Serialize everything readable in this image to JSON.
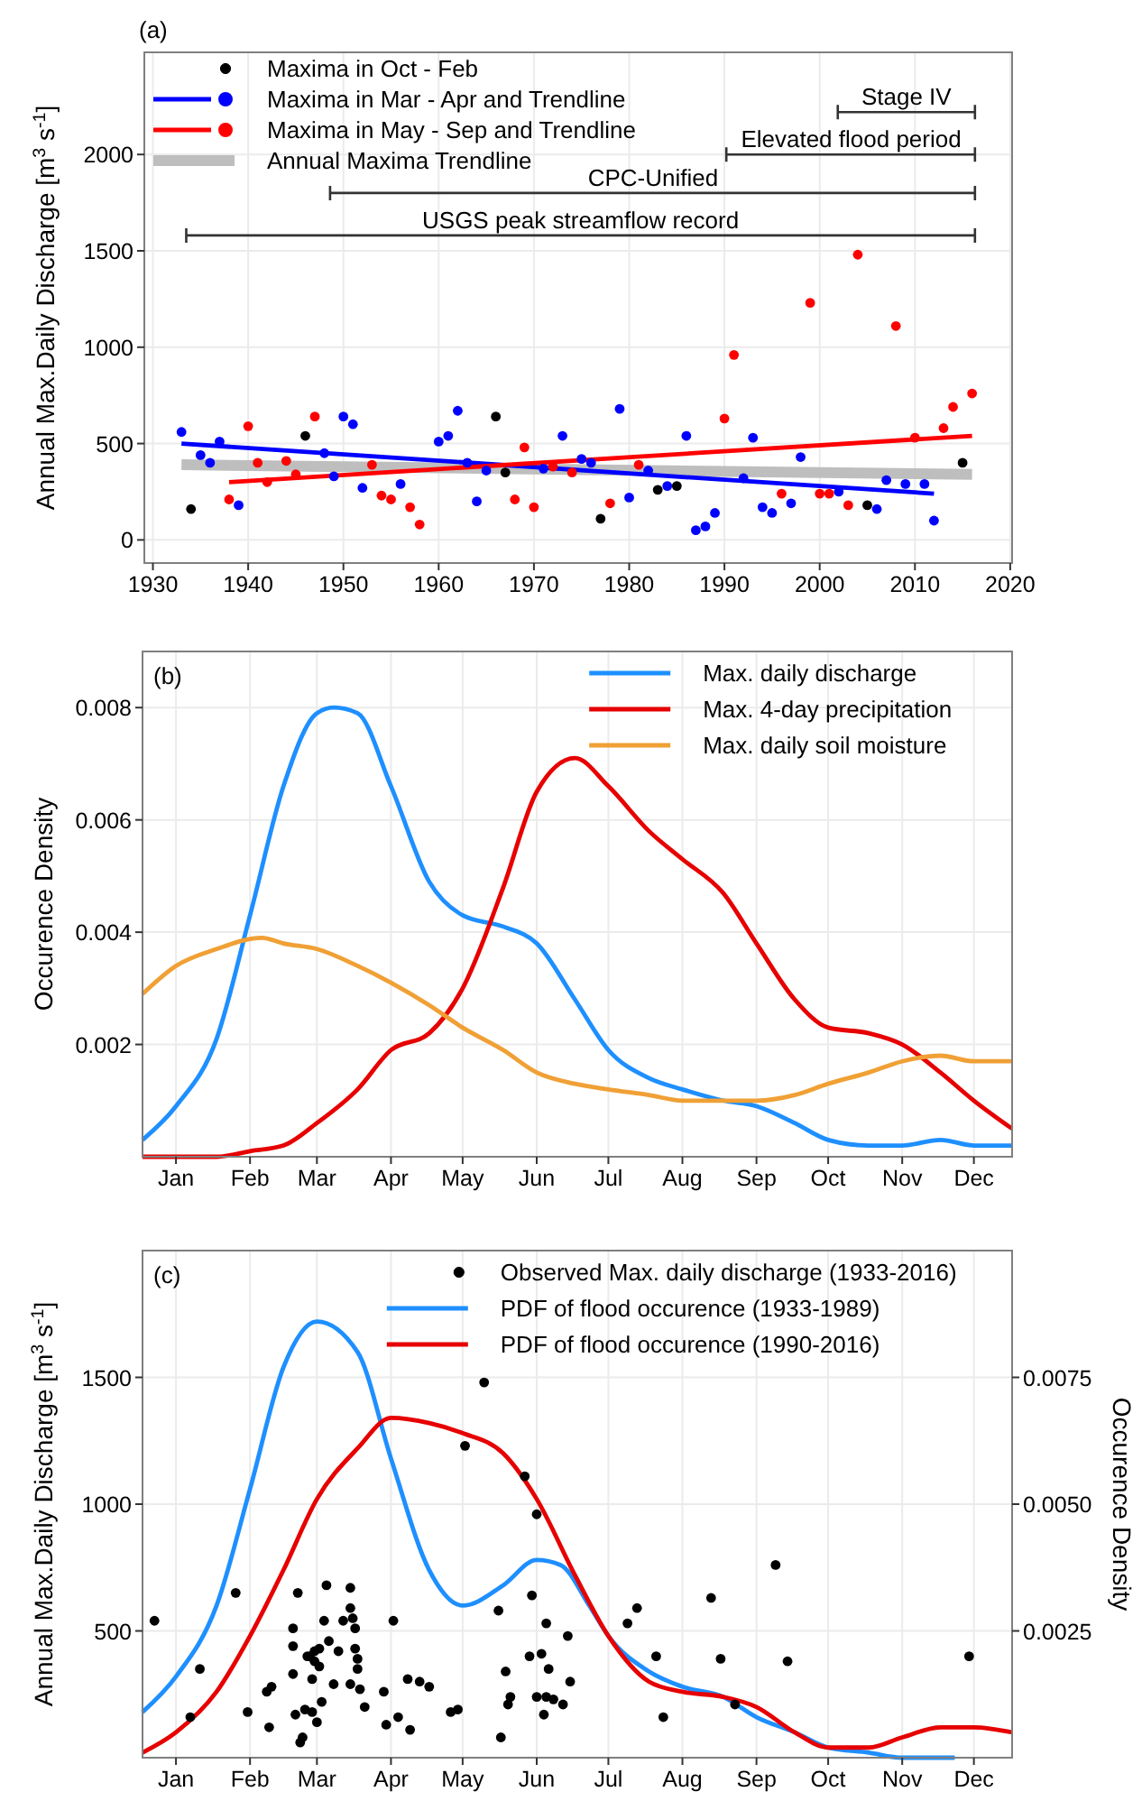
{
  "chart_data": [
    {
      "type": "scatter",
      "title": "(a)",
      "ylabel": "Annual Max.Daily Discharge [m$^{3}$ s$^{-1}$]",
      "xlim": [
        1929.1,
        2020.2
      ],
      "ylim": [
        -120,
        2530
      ],
      "xticks": [
        1930,
        1940,
        1950,
        1960,
        1970,
        1980,
        1990,
        2000,
        2010,
        2020
      ],
      "yticks": [
        0,
        500,
        1000,
        1500,
        2000
      ],
      "grid": true,
      "legend": "top left",
      "series": [
        {
          "name": "Maxima in Oct - Feb",
          "marker": "circle",
          "color": "#000000",
          "x": [
            1934,
            1946,
            1966,
            1967,
            1977,
            1983,
            1985,
            2005,
            2015
          ],
          "values": [
            160,
            540,
            640,
            350,
            110,
            260,
            280,
            180,
            400
          ]
        },
        {
          "name": "Maxima in Mar - Apr and Trendline",
          "marker": "circle",
          "color": "#0000ff",
          "x": [
            1933,
            1935,
            1936,
            1937,
            1939,
            1948,
            1949,
            1950,
            1951,
            1952,
            1956,
            1960,
            1961,
            1962,
            1963,
            1964,
            1965,
            1971,
            1973,
            1975,
            1976,
            1979,
            1980,
            1982,
            1984,
            1986,
            1987,
            1988,
            1989,
            1992,
            1993,
            1994,
            1995,
            1997,
            1998,
            2002,
            2006,
            2007,
            2009,
            2011,
            2012
          ],
          "values": [
            560,
            440,
            400,
            510,
            180,
            450,
            330,
            640,
            600,
            270,
            290,
            510,
            540,
            670,
            400,
            200,
            360,
            370,
            540,
            420,
            400,
            680,
            220,
            360,
            280,
            540,
            50,
            70,
            140,
            320,
            530,
            170,
            140,
            190,
            430,
            250,
            160,
            310,
            290,
            290,
            100
          ]
        },
        {
          "name": "Maxima in May - Sep and Trendline",
          "marker": "circle",
          "color": "#ff0000",
          "x": [
            1938,
            1940,
            1941,
            1942,
            1944,
            1945,
            1947,
            1953,
            1954,
            1955,
            1957,
            1958,
            1968,
            1969,
            1970,
            1972,
            1974,
            1978,
            1981,
            1990,
            1991,
            1996,
            1999,
            2000,
            2001,
            2003,
            2004,
            2008,
            2010,
            2013,
            2014,
            2016
          ],
          "values": [
            210,
            590,
            400,
            300,
            410,
            340,
            640,
            390,
            230,
            210,
            170,
            80,
            210,
            480,
            170,
            380,
            350,
            190,
            390,
            630,
            960,
            240,
            1230,
            240,
            240,
            180,
            1480,
            1110,
            530,
            580,
            690,
            760
          ]
        },
        {
          "name": "Annual Maxima Trendline",
          "type": "line",
          "color": "#bebebe",
          "x": [
            1933,
            2016
          ],
          "values": [
            390,
            340
          ]
        },
        {
          "type": "line",
          "color": "#0000ff",
          "x": [
            1933,
            2012
          ],
          "values": [
            500,
            240
          ]
        },
        {
          "type": "line",
          "color": "#ff0000",
          "x": [
            1938,
            2016
          ],
          "values": [
            300,
            540
          ]
        },
        {
          "type": "line",
          "color": "#333333",
          "x": [
            2001.9,
            2016.3
          ],
          "values": [
            2220,
            2220
          ]
        },
        {
          "type": "line",
          "color": "#333333",
          "x": [
            1990.2,
            2016.3
          ],
          "values": [
            2000,
            2000
          ]
        },
        {
          "type": "line",
          "color": "#333333",
          "x": [
            1948.6,
            2016.3
          ],
          "values": [
            1800,
            1800
          ]
        },
        {
          "type": "line",
          "color": "#333333",
          "x": [
            1933.5,
            2016.3
          ],
          "values": [
            1580,
            1580
          ]
        }
      ],
      "annotations": [
        {
          "text": "Stage IV",
          "x": 2009.1,
          "y": 2220
        },
        {
          "text": "Elevated flood period",
          "x": 2003.3,
          "y": 2000
        },
        {
          "text": "CPC-Unified",
          "x": 1982.5,
          "y": 1800
        },
        {
          "text": "USGS peak streamflow record",
          "x": 1974.9,
          "y": 1580
        }
      ]
    },
    {
      "type": "line",
      "title": "(b)",
      "ylabel": "Occurence Density",
      "xlim": [
        "--01-01",
        "--12-31"
      ],
      "ylim": [
        0,
        0.009
      ],
      "xticks": [
        {
          "value": "--01-15",
          "label": "Jan"
        },
        {
          "value": "--02-15",
          "label": "Feb"
        },
        {
          "value": "--03-15",
          "label": "Mar"
        },
        {
          "value": "--04-15",
          "label": "Apr"
        },
        {
          "value": "--05-15",
          "label": "May"
        },
        {
          "value": "--06-15",
          "label": "Jun"
        },
        {
          "value": "--07-15",
          "label": "Jul"
        },
        {
          "value": "--08-15",
          "label": "Aug"
        },
        {
          "value": "--09-15",
          "label": "Sep"
        },
        {
          "value": "--10-15",
          "label": "Oct"
        },
        {
          "value": "--11-15",
          "label": "Nov"
        },
        {
          "value": "--12-15",
          "label": "Dec"
        }
      ],
      "yticks": [
        0.002,
        0.004,
        0.006,
        0.008
      ],
      "grid": true,
      "legend": "top right",
      "series": [
        {
          "name": "Max. daily discharge",
          "color": "#1e8fff",
          "x": [
            "--01-01",
            "--01-15",
            "--02-01",
            "--02-15",
            "--03-01",
            "--03-15",
            "--03-22",
            "--04-01",
            "--04-15",
            "--05-01",
            "--05-15",
            "--06-01",
            "--06-15",
            "--07-01",
            "--07-15",
            "--08-01",
            "--08-15",
            "--09-01",
            "--09-15",
            "--10-01",
            "--10-15",
            "--11-01",
            "--11-15",
            "--12-01",
            "--12-15",
            "--12-31"
          ],
          "values": [
            0.0003,
            0.0009,
            0.0021,
            0.0043,
            0.0066,
            0.0079,
            0.008,
            0.0079,
            0.0066,
            0.0049,
            0.0043,
            0.0041,
            0.0038,
            0.0028,
            0.0019,
            0.0014,
            0.0012,
            0.001,
            0.0009,
            0.0006,
            0.0003,
            0.0002,
            0.0002,
            0.0003,
            0.0002,
            0.0002
          ]
        },
        {
          "name": "Max. 4-day precipitation",
          "color": "#e60000",
          "x": [
            "--01-01",
            "--02-01",
            "--02-15",
            "--03-01",
            "--03-15",
            "--04-01",
            "--04-15",
            "--05-01",
            "--05-15",
            "--06-01",
            "--06-15",
            "--07-01",
            "--07-15",
            "--08-01",
            "--08-15",
            "--09-01",
            "--09-15",
            "--10-01",
            "--10-15",
            "--11-01",
            "--11-15",
            "--12-01",
            "--12-15",
            "--12-31"
          ],
          "values": [
            0,
            0,
            0.0001,
            0.0002,
            0.0006,
            0.0012,
            0.0019,
            0.0022,
            0.003,
            0.0048,
            0.0065,
            0.0071,
            0.0066,
            0.0058,
            0.0053,
            0.0047,
            0.0038,
            0.0028,
            0.0023,
            0.0022,
            0.002,
            0.0015,
            0.001,
            0.0005
          ]
        },
        {
          "name": "Max. daily soil moisture",
          "color": "#f0a035",
          "x": [
            "--01-01",
            "--01-15",
            "--02-01",
            "--02-20",
            "--03-01",
            "--03-15",
            "--04-01",
            "--04-15",
            "--05-01",
            "--05-15",
            "--06-01",
            "--06-15",
            "--07-01",
            "--07-15",
            "--08-01",
            "--08-15",
            "--09-01",
            "--09-15",
            "--10-01",
            "--10-15",
            "--11-01",
            "--11-15",
            "--12-01",
            "--12-15",
            "--12-31"
          ],
          "values": [
            0.0029,
            0.0034,
            0.0037,
            0.0039,
            0.0038,
            0.0037,
            0.0034,
            0.0031,
            0.0027,
            0.0023,
            0.0019,
            0.0015,
            0.0013,
            0.0012,
            0.0011,
            0.001,
            0.001,
            0.001,
            0.0011,
            0.0013,
            0.0015,
            0.0017,
            0.0018,
            0.0017,
            0.0017
          ]
        }
      ]
    },
    {
      "type": "line",
      "title": "(c)",
      "ylabel": "Annual Max.Daily Discharge [m$^{3}$ s$^{-1}$]",
      "y2label": "Occurence Density",
      "xlim": [
        "--01-01",
        "--12-31"
      ],
      "ylim": [
        0,
        2000
      ],
      "y2lim": [
        0,
        0.01
      ],
      "xticks": [
        {
          "value": "--01-15",
          "label": "Jan"
        },
        {
          "value": "--02-15",
          "label": "Feb"
        },
        {
          "value": "--03-15",
          "label": "Mar"
        },
        {
          "value": "--04-15",
          "label": "Apr"
        },
        {
          "value": "--05-15",
          "label": "May"
        },
        {
          "value": "--06-15",
          "label": "Jun"
        },
        {
          "value": "--07-15",
          "label": "Jul"
        },
        {
          "value": "--08-15",
          "label": "Aug"
        },
        {
          "value": "--09-15",
          "label": "Sep"
        },
        {
          "value": "--10-15",
          "label": "Oct"
        },
        {
          "value": "--11-15",
          "label": "Nov"
        },
        {
          "value": "--12-15",
          "label": "Dec"
        }
      ],
      "yticks": [
        500,
        1000,
        1500
      ],
      "y2ticks": [
        {
          "value": 0.0025,
          "label": "0.0025"
        },
        {
          "value": 0.005,
          "label": "0.0050"
        },
        {
          "value": 0.0075,
          "label": "0.0075"
        }
      ],
      "grid": true,
      "legend": "top right",
      "series": [
        {
          "name": "Observed Max. daily discharge (1933-2016)",
          "type": "scatter",
          "marker": "circle",
          "color": "#000000",
          "x": [
            "--01-06",
            "--01-21",
            "--01-25",
            "--02-09",
            "--02-14",
            "--02-23",
            "--02-22",
            "--02-24",
            "--03-07",
            "--03-05",
            "--03-05",
            "--03-05",
            "--03-06",
            "--03-08",
            "--03-09",
            "--03-10",
            "--03-13",
            "--03-13",
            "--03-15",
            "--03-11",
            "--03-12",
            "--03-14",
            "--03-14",
            "--03-16",
            "--03-17",
            "--03-16",
            "--03-19",
            "--03-18",
            "--03-20",
            "--03-22",
            "--03-24",
            "--03-26",
            "--03-29",
            "--03-29",
            "--03-30",
            "--03-31",
            "--03-31",
            "--04-01",
            "--04-01",
            "--03-29",
            "--04-02",
            "--04-04",
            "--04-12",
            "--04-13",
            "--04-16",
            "--04-18",
            "--04-22",
            "--04-23",
            "--04-27",
            "--05-01",
            "--05-10",
            "--05-13",
            "--05-16",
            "--05-24",
            "--05-30",
            "--05-31",
            "--06-02",
            "--06-03",
            "--06-04",
            "--06-10",
            "--06-13",
            "--06-12",
            "--06-15",
            "--06-15",
            "--06-17",
            "--06-18",
            "--06-19",
            "--06-20",
            "--06-22",
            "--06-19",
            "--06-26",
            "--06-28",
            "--06-29",
            "--07-23",
            "--07-27",
            "--08-04",
            "--08-07",
            "--08-27",
            "--08-31",
            "--09-06",
            "--09-23",
            "--09-28",
            "--12-13"
          ],
          "values": [
            540,
            160,
            350,
            650,
            180,
            120,
            260,
            280,
            650,
            440,
            510,
            330,
            170,
            60,
            80,
            190,
            310,
            180,
            140,
            400,
            400,
            420,
            380,
            360,
            220,
            430,
            680,
            540,
            460,
            290,
            420,
            540,
            670,
            590,
            550,
            510,
            430,
            390,
            350,
            290,
            270,
            200,
            260,
            130,
            540,
            160,
            310,
            110,
            300,
            280,
            180,
            190,
            1230,
            1480,
            580,
            80,
            340,
            210,
            240,
            1110,
            640,
            400,
            960,
            240,
            410,
            170,
            240,
            350,
            230,
            530,
            210,
            480,
            300,
            530,
            590,
            400,
            160,
            630,
            390,
            210,
            760,
            380,
            400
          ]
        },
        {
          "name": "PDF of flood occurence (1933-1989)",
          "axis": "y2",
          "color": "#1e8fff",
          "x": [
            "--01-01",
            "--01-15",
            "--02-01",
            "--02-15",
            "--03-01",
            "--03-15",
            "--04-01",
            "--04-15",
            "--05-01",
            "--05-15",
            "--06-01",
            "--06-15",
            "--06-25",
            "--07-07",
            "--07-15",
            "--08-01",
            "--08-15",
            "--09-01",
            "--09-15",
            "--10-01",
            "--10-15",
            "--11-01",
            "--11-15",
            "--12-07"
          ],
          "values": [
            0.0009,
            0.0016,
            0.003,
            0.0053,
            0.0077,
            0.0086,
            0.008,
            0.0059,
            0.0037,
            0.003,
            0.0034,
            0.0039,
            0.0038,
            0.003,
            0.0024,
            0.0017,
            0.0014,
            0.0012,
            0.0008,
            0.0005,
            0.0002,
            0.0001,
            0,
            0
          ]
        },
        {
          "name": "PDF of flood occurence (1990-2016)",
          "axis": "y2",
          "color": "#e60000",
          "x": [
            "--01-01",
            "--01-15",
            "--02-01",
            "--02-15",
            "--03-01",
            "--03-15",
            "--04-01",
            "--04-15",
            "--05-01",
            "--05-15",
            "--06-01",
            "--06-15",
            "--07-01",
            "--07-15",
            "--08-01",
            "--08-15",
            "--09-01",
            "--09-15",
            "--10-01",
            "--10-15",
            "--11-01",
            "--11-15",
            "--12-01",
            "--12-15",
            "--12-31"
          ],
          "values": [
            0.0001,
            0.0005,
            0.0013,
            0.0024,
            0.0037,
            0.0051,
            0.0061,
            0.0067,
            0.0066,
            0.0064,
            0.006,
            0.0051,
            0.0036,
            0.0024,
            0.0015,
            0.0013,
            0.0012,
            0.001,
            0.0005,
            0.0002,
            0.0002,
            0.0004,
            0.0006,
            0.0006,
            0.0005
          ]
        }
      ]
    }
  ]
}
